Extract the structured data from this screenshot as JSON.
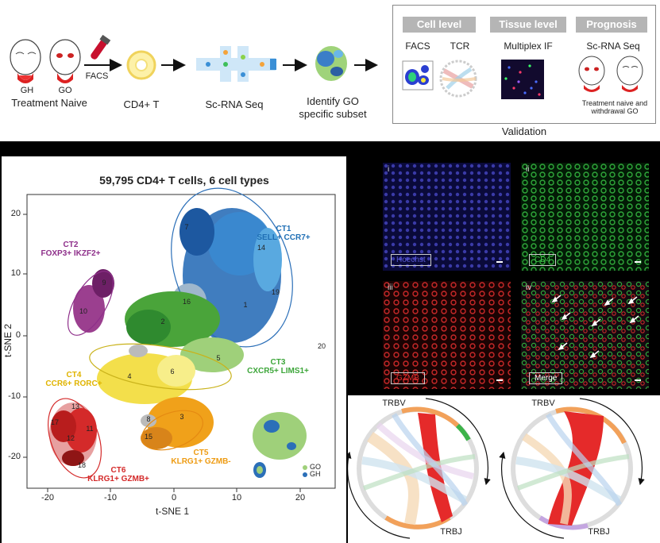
{
  "workflow": {
    "patients": {
      "gh": "GH",
      "go": "GO",
      "caption": "Treatment Naive"
    },
    "facs": "FACS",
    "cd4": "CD4+ T",
    "scrna": "Sc-RNA Seq",
    "identify": "Identify GO specific subset"
  },
  "validation": {
    "tabs": [
      "Cell level",
      "Tissue level",
      "Prognosis"
    ],
    "items": {
      "facs": "FACS",
      "tcr": "TCR",
      "multiplex": "Multiplex IF",
      "scrna": "Sc-RNA Seq",
      "withdrawal": "Treatment naive and withdrawal GO"
    },
    "caption": "Validation"
  },
  "tsne": {
    "title": "59,795 CD4+ T cells, 6 cell types",
    "xlabel": "t-SNE 1",
    "ylabel": "t-SNE 2",
    "xticks": [
      "-20",
      "-10",
      "0",
      "10",
      "20"
    ],
    "yticks": [
      "20",
      "10",
      "0",
      "-10",
      "-20"
    ],
    "celltypes": [
      {
        "id": "CT1",
        "markers": "SELL+ CCR7+",
        "color": "#1f6fb5"
      },
      {
        "id": "CT2",
        "markers": "FOXP3+ IKZF2+",
        "color": "#8e2f8a"
      },
      {
        "id": "CT3",
        "markers": "CXCR5+ LIMS1+",
        "color": "#3da63a"
      },
      {
        "id": "CT4",
        "markers": "CCR6+ RORC+",
        "color": "#e8c21f"
      },
      {
        "id": "CT5",
        "markers": "KLRG1+ GZMB-",
        "color": "#ee9b12"
      },
      {
        "id": "CT6",
        "markers": "KLRG1+ GZMB+",
        "color": "#d42a2a"
      }
    ],
    "clusters": [
      "1",
      "2",
      "3",
      "4",
      "5",
      "6",
      "7",
      "8",
      "9",
      "10",
      "11",
      "12",
      "13",
      "14",
      "15",
      "16",
      "17",
      "18",
      "19",
      "20"
    ],
    "inset_legend": [
      "GO",
      "GH"
    ]
  },
  "if_panel": {
    "tiles": [
      {
        "roman": "i",
        "tag": "Hoechst",
        "color": "#5b5bd6"
      },
      {
        "roman": "ii",
        "tag": "CD4",
        "color": "#3ec84a"
      },
      {
        "roman": "iii",
        "tag": "GZMB",
        "color": "#e23030"
      },
      {
        "roman": "iv",
        "tag": "Merge",
        "color": "#ffffff"
      }
    ]
  },
  "chord": {
    "left": {
      "top": "TRBV",
      "bottom": "TRBJ"
    },
    "right": {
      "top": "TRBV",
      "bottom": "TRBJ"
    }
  },
  "colors": {
    "arrow": "#111111",
    "tab_grey": "#b5b5b5"
  }
}
